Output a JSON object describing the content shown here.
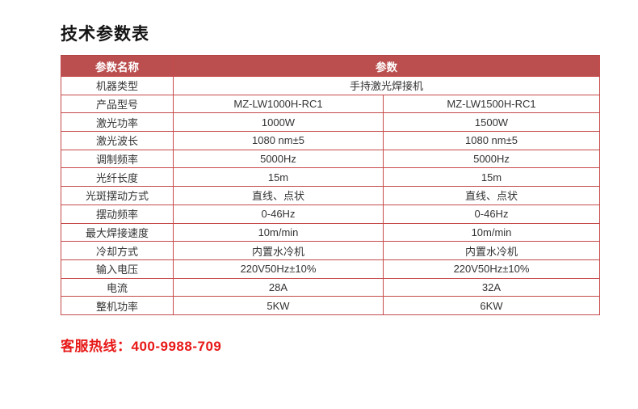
{
  "page": {
    "title": "技术参数表"
  },
  "colors": {
    "header_bg": "#bb4f4f",
    "header_top": "#b04545",
    "border": "#c64a4a",
    "cell_text": "#333333",
    "hotline": "#e81717"
  },
  "table": {
    "header": {
      "name_label": "参数名称",
      "value_label": "参数"
    },
    "rows": [
      {
        "name": "机器类型",
        "values": [
          "手持激光焊接机"
        ]
      },
      {
        "name": "产品型号",
        "values": [
          "MZ-LW1000H-RC1",
          "MZ-LW1500H-RC1"
        ]
      },
      {
        "name": "激光功率",
        "values": [
          "1000W",
          "1500W"
        ]
      },
      {
        "name": "激光波长",
        "values": [
          "1080 nm±5",
          "1080 nm±5"
        ]
      },
      {
        "name": "调制频率",
        "values": [
          "5000Hz",
          "5000Hz"
        ]
      },
      {
        "name": "光纤长度",
        "values": [
          "15m",
          "15m"
        ]
      },
      {
        "name": "光斑摆动方式",
        "values": [
          "直线、点状",
          "直线、点状"
        ]
      },
      {
        "name": "摆动频率",
        "values": [
          "0-46Hz",
          "0-46Hz"
        ]
      },
      {
        "name": "最大焊接速度",
        "values": [
          "10m/min",
          "10m/min"
        ]
      },
      {
        "name": "冷却方式",
        "values": [
          "内置水冷机",
          "内置水冷机"
        ]
      },
      {
        "name": "输入电压",
        "values": [
          "220V50Hz±10%",
          "220V50Hz±10%"
        ]
      },
      {
        "name": "电流",
        "values": [
          "28A",
          "32A"
        ]
      },
      {
        "name": "整机功率",
        "values": [
          "5KW",
          "6KW"
        ]
      }
    ]
  },
  "footer": {
    "hotline_label": "客服热线：",
    "hotline_number": "400-9988-709"
  }
}
